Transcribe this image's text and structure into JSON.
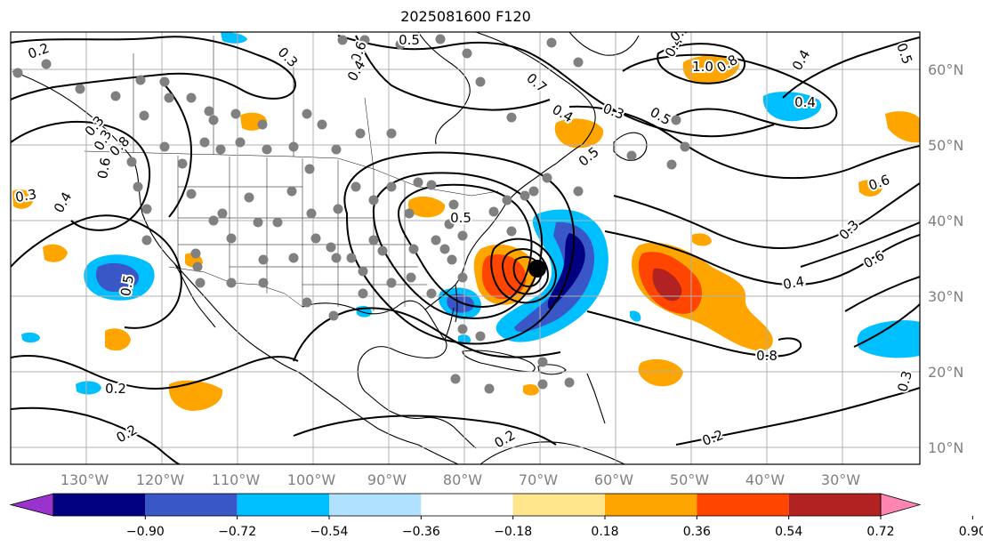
{
  "title": "2025081600 F120",
  "latitude_labels": [
    "60°N",
    "50°N",
    "40°N",
    "30°N",
    "20°N",
    "10°N"
  ],
  "longitude_labels": [
    "130°W",
    "120°W",
    "110°W",
    "100°W",
    "90°W",
    "80°W",
    "70°W",
    "60°W",
    "50°W",
    "40°W",
    "30°W"
  ],
  "colorbar": {
    "ticks": [
      "−0.90",
      "−0.72",
      "−0.54",
      "−0.36",
      "−0.18",
      "0.18",
      "0.36",
      "0.54",
      "0.72",
      "0.90"
    ],
    "colors": [
      "#9a32cd",
      "#000080",
      "#3a57c8",
      "#00bfff",
      "#b0e2ff",
      "#ffffff",
      "#ffe68c",
      "#ffa500",
      "#ff4500",
      "#b22222",
      "#ff86b0"
    ]
  },
  "contour_labels": [
    "0.2",
    "0.3",
    "0.5",
    "0.6",
    "0.4",
    "0.3",
    "0.8",
    "0.7",
    "0.4",
    "0.3",
    "0.5",
    "1.0",
    "0.8",
    "0.4",
    "0.5",
    "0.4",
    "0.5",
    "0.3",
    "0.6",
    "0.8",
    "0.6",
    "0.4",
    "0.5",
    "0.4",
    "0.6",
    "0.3",
    "0.2",
    "0.2",
    "0.2",
    "0.4",
    "0.3",
    "0.5",
    "0.5",
    "0.2",
    "0.3"
  ]
}
